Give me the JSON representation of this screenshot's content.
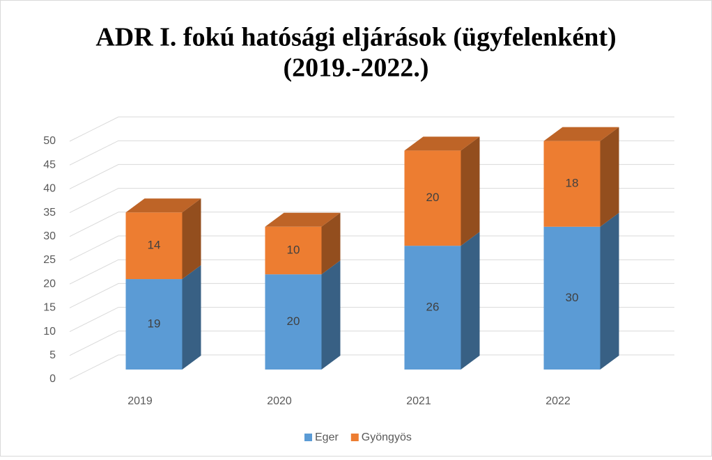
{
  "chart_data": {
    "type": "bar3d_stacked",
    "title": [
      "ADR I. fokú hatósági eljárások (ügyfelenként)",
      "(2019.-2022.)"
    ],
    "categories": [
      "2019",
      "2020",
      "2021",
      "2022"
    ],
    "series": [
      {
        "name": "Eger",
        "color": "#5b9bd5",
        "values": [
          19,
          20,
          26,
          30
        ]
      },
      {
        "name": "Gyöngyös",
        "color": "#ed7d31",
        "values": [
          14,
          10,
          20,
          18
        ]
      }
    ],
    "ylim": [
      0,
      50
    ],
    "yticks": [
      0,
      5,
      10,
      15,
      20,
      25,
      30,
      35,
      40,
      45,
      50
    ],
    "grid": true,
    "legend": "bottom"
  }
}
